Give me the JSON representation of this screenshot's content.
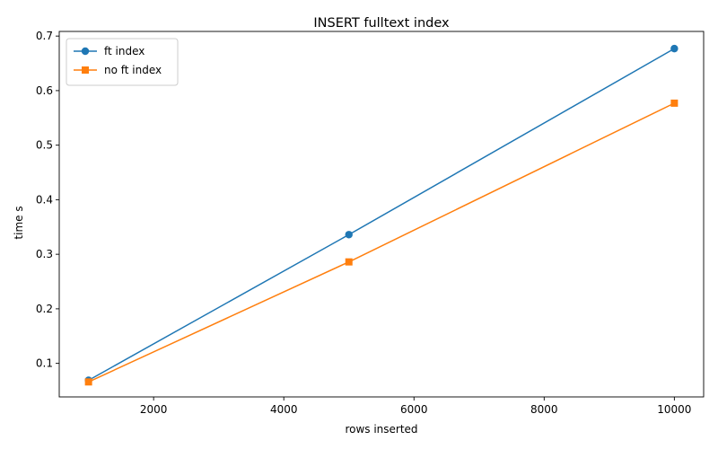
{
  "chart_data": {
    "type": "line",
    "title": "INSERT fulltext index",
    "xlabel": "rows inserted",
    "ylabel": "time s",
    "xlim": [
      550,
      10450
    ],
    "ylim": [
      0.0385,
      0.7085
    ],
    "xticks": [
      2000,
      4000,
      6000,
      8000,
      10000
    ],
    "yticks": [
      0.1,
      0.2,
      0.3,
      0.4,
      0.5,
      0.6,
      0.7
    ],
    "grid": false,
    "legend_position": "top-left",
    "series": [
      {
        "name": "ft index",
        "color": "#1f77b4",
        "marker": "circle",
        "x": [
          1000,
          5000,
          10000
        ],
        "y": [
          0.069,
          0.336,
          0.677
        ]
      },
      {
        "name": "no ft index",
        "color": "#ff7f0e",
        "marker": "square",
        "x": [
          1000,
          5000,
          10000
        ],
        "y": [
          0.066,
          0.286,
          0.577
        ]
      }
    ]
  }
}
